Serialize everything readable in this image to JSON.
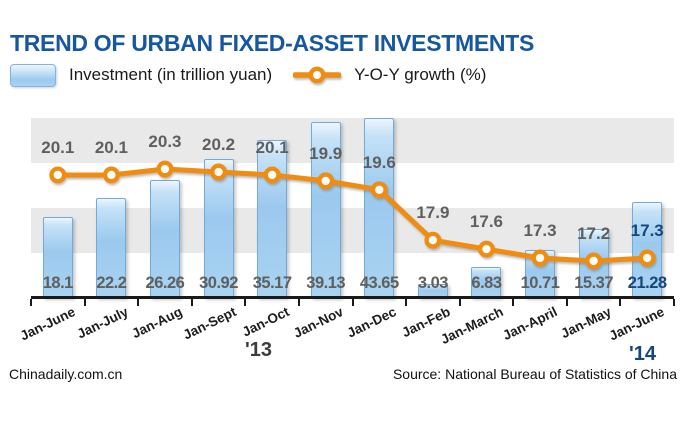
{
  "title": "TREND OF URBAN FIXED-ASSET INVESTMENTS",
  "legend": {
    "investment_label": "Investment (in trillion yuan)",
    "growth_label": "Y-O-Y growth (%)"
  },
  "chart_data": {
    "type": "combo-bar-line",
    "categories": [
      "Jan-June",
      "Jan-July",
      "Jan-Aug",
      "Jan-Sept",
      "Jan-Oct",
      "Jan-Nov",
      "Jan-Dec",
      "Jan-Feb",
      "Jan-March",
      "Jan-April",
      "Jan-May",
      "Jan-June"
    ],
    "series": [
      {
        "name": "Investment (in trillion yuan)",
        "type": "bar",
        "values": [
          18.1,
          22.2,
          26.26,
          30.92,
          35.17,
          39.13,
          43.65,
          3.03,
          6.83,
          10.71,
          15.37,
          21.28
        ]
      },
      {
        "name": "Y-O-Y growth (%)",
        "type": "line",
        "values": [
          20.1,
          20.1,
          20.3,
          20.2,
          20.1,
          19.9,
          19.6,
          17.9,
          17.6,
          17.3,
          17.2,
          17.3
        ]
      }
    ],
    "bar_axis_range": [
      0,
      40
    ],
    "bars_clipped_at_top": [
      "43.65"
    ],
    "grid": "alternating horizontal gray/white bands, 10-unit intervals",
    "legend_position": "top",
    "data_labels": "bar values above axis, growth values above line markers",
    "highlight_last_category": true
  },
  "year_labels": {
    "left": "'13",
    "right": "'14"
  },
  "footer": {
    "site": "Chinadaily.com.cn",
    "source": "Source: National Bureau of Statistics of China"
  },
  "colors": {
    "title_blue": "#1657a0",
    "bar_fill": "#9fcbef",
    "bar_border": "#74aad8",
    "line_orange": "#f08c10",
    "gray_text": "#5f5f5f",
    "navy_highlight": "#17467d",
    "band_gray": "#e9e9e9",
    "axis_black": "#1a1a1a"
  }
}
